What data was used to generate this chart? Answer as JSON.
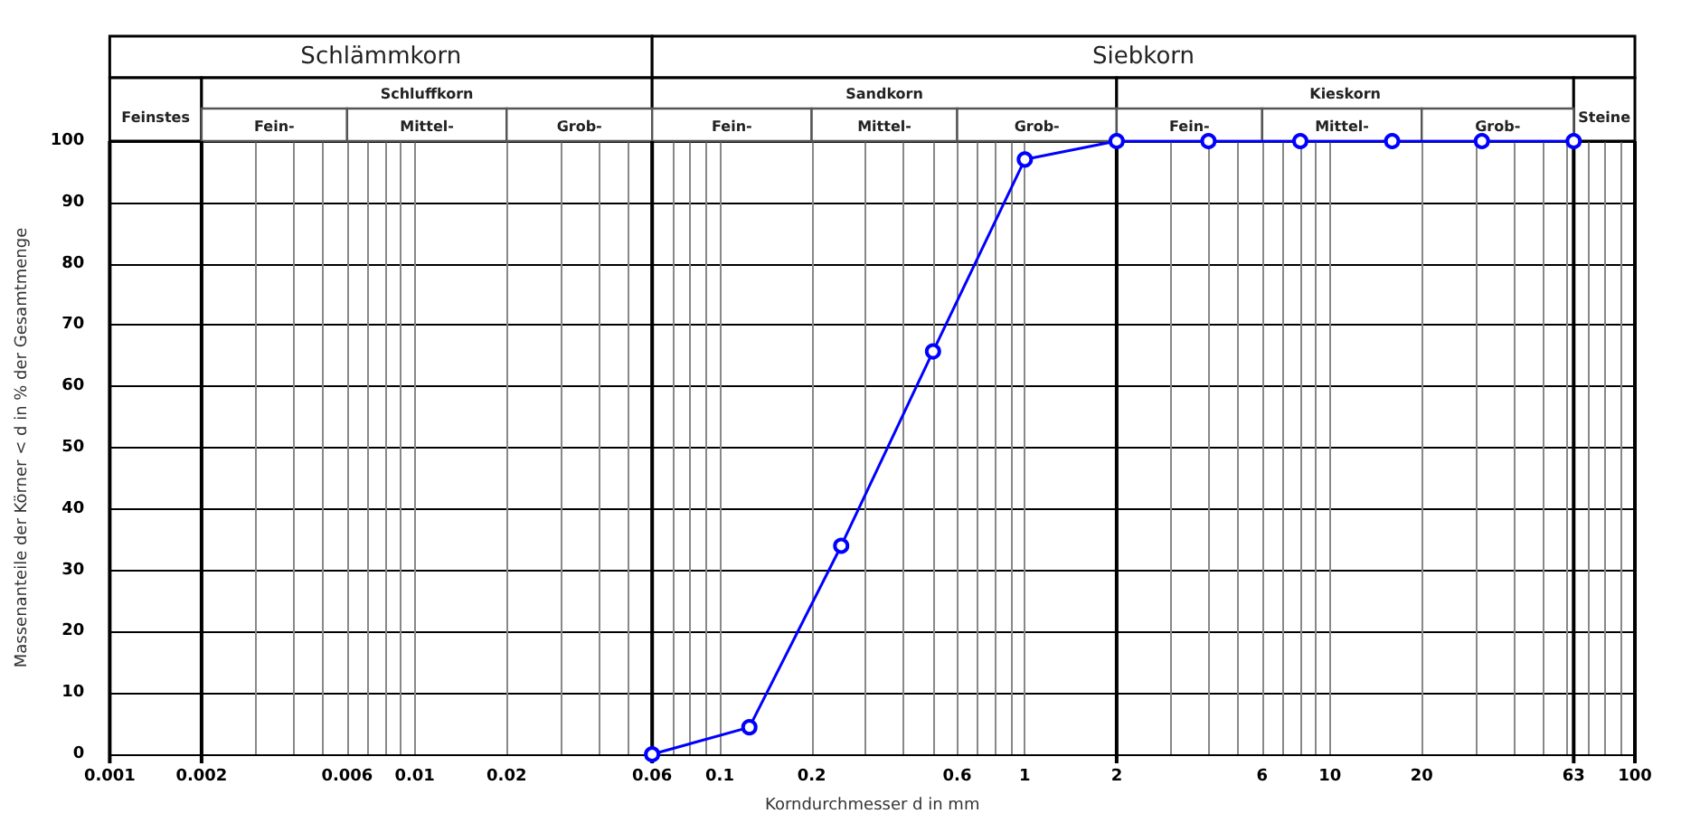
{
  "chart_data": {
    "type": "line",
    "xlabel": "Korndurchmesser d in mm",
    "ylabel": "Massenanteile der Körner < d in % der Gesamtmenge",
    "log": "x",
    "grid": true,
    "marker": "circle",
    "xlim": [
      0.001,
      100
    ],
    "xticks": [
      0.001,
      0.002,
      0.006,
      0.01,
      0.02,
      0.06,
      0.1,
      0.2,
      0.6,
      1,
      2,
      6,
      10,
      20,
      63,
      100
    ],
    "ylim": [
      0,
      100
    ],
    "yticks": [
      0,
      10,
      20,
      30,
      40,
      50,
      60,
      70,
      80,
      90,
      100
    ],
    "series": [
      {
        "color": "#0000ff",
        "x": [
          0.06,
          0.125,
          0.25,
          0.5,
          1,
          2,
          4,
          8,
          16,
          31.5,
          63
        ],
        "values": [
          0,
          4.4,
          34,
          65.7,
          97,
          100,
          100,
          100,
          100,
          100,
          100
        ]
      }
    ],
    "annotations": [
      "Schlämmkorn",
      "Siebkorn",
      "Feinstes",
      "Schluffkorn",
      "Sandkorn",
      "Kieskorn",
      "Steine",
      "Fein-",
      "Mittel-",
      "Grob-",
      "Fein-",
      "Mittel-",
      "Grob-",
      "Fein-",
      "Mittel-",
      "Grob-"
    ]
  }
}
